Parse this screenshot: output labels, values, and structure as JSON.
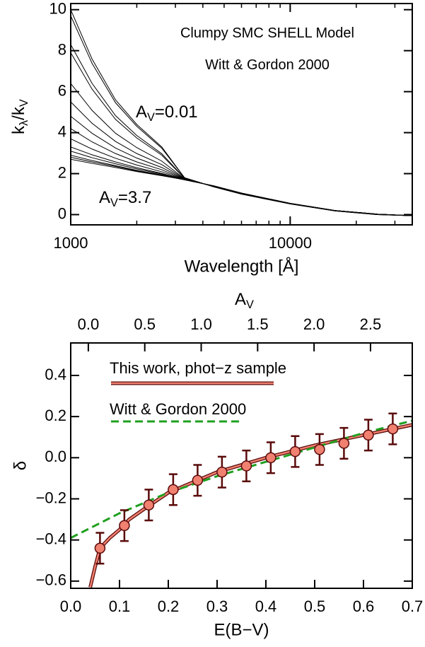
{
  "chart_data": [
    {
      "type": "line",
      "xlog": true,
      "color": "#000000",
      "xlabel": "Wavelength [Å]",
      "ylabel_parts": [
        "k",
        "λ",
        "/k",
        "V"
      ],
      "annotations": [
        {
          "parts": [
            "Clumpy SMC SHELL Model"
          ]
        },
        {
          "parts": [
            "Witt & Gordon 2000"
          ]
        },
        {
          "parts": [
            "A",
            "V",
            "=0.01"
          ]
        },
        {
          "parts": [
            "A",
            "V",
            "=3.7"
          ]
        }
      ],
      "xlim": [
        1000,
        36000
      ],
      "xticks": [
        1000,
        10000
      ],
      "xminorticks": [
        2000,
        3000,
        4000,
        5000,
        6000,
        7000,
        8000,
        9000,
        20000,
        30000
      ],
      "ylim": [
        -0.5,
        10.3
      ],
      "yticks": [
        0,
        2,
        4,
        6,
        8,
        10
      ],
      "x": [
        1000,
        1250,
        1600,
        2000,
        2600,
        3300,
        4500,
        6000,
        10000,
        16000,
        25000,
        36000
      ],
      "series": [
        {
          "values": [
            10.0,
            7.6,
            5.6,
            4.4,
            3.3,
            1.8,
            1.35,
            1.0,
            0.52,
            0.18,
            0.0,
            -0.05
          ]
        },
        {
          "values": [
            9.7,
            7.39,
            5.46,
            4.31,
            3.24,
            1.8,
            1.35,
            1.0,
            0.52,
            0.18,
            0.0,
            -0.05
          ]
        },
        {
          "values": [
            8.3,
            6.41,
            4.83,
            3.86,
            2.97,
            1.78,
            1.36,
            1.01,
            0.53,
            0.18,
            0.0,
            -0.05
          ]
        },
        {
          "values": [
            7.9,
            6.13,
            4.65,
            3.74,
            2.9,
            1.77,
            1.36,
            1.01,
            0.53,
            0.19,
            0.01,
            -0.05
          ]
        },
        {
          "values": [
            6.4,
            5.09,
            3.97,
            3.27,
            2.61,
            1.75,
            1.37,
            1.02,
            0.54,
            0.19,
            0.01,
            -0.05
          ]
        },
        {
          "values": [
            5.5,
            4.46,
            3.57,
            2.98,
            2.44,
            1.74,
            1.38,
            1.03,
            0.54,
            0.19,
            0.01,
            -0.05
          ]
        },
        {
          "values": [
            4.8,
            3.97,
            3.25,
            2.76,
            2.3,
            1.73,
            1.39,
            1.04,
            0.55,
            0.2,
            0.02,
            -0.05
          ]
        },
        {
          "values": [
            4.2,
            3.55,
            2.98,
            2.57,
            2.19,
            1.72,
            1.39,
            1.04,
            0.55,
            0.2,
            0.02,
            -0.05
          ]
        },
        {
          "values": [
            3.7,
            3.2,
            2.75,
            2.42,
            2.09,
            1.71,
            1.39,
            1.04,
            0.55,
            0.2,
            0.02,
            -0.05
          ]
        },
        {
          "values": [
            3.3,
            2.92,
            2.57,
            2.29,
            2.01,
            1.71,
            1.4,
            1.05,
            0.55,
            0.2,
            0.02,
            -0.05
          ]
        },
        {
          "values": [
            3.1,
            2.78,
            2.48,
            2.23,
            1.98,
            1.71,
            1.4,
            1.05,
            0.55,
            0.2,
            0.02,
            -0.05
          ]
        },
        {
          "values": [
            2.9,
            2.64,
            2.39,
            2.16,
            1.94,
            1.7,
            1.4,
            1.05,
            0.55,
            0.2,
            0.02,
            -0.05
          ]
        },
        {
          "values": [
            2.8,
            2.57,
            2.35,
            2.13,
            1.92,
            1.7,
            1.4,
            1.05,
            0.55,
            0.2,
            0.02,
            -0.05
          ]
        },
        {
          "values": [
            2.7,
            2.5,
            2.3,
            2.1,
            1.9,
            1.7,
            1.4,
            1.05,
            0.55,
            0.2,
            0.02,
            -0.05
          ]
        }
      ]
    },
    {
      "type": "line",
      "legend": "upper left",
      "xlabel": "E(B−V)",
      "x2label_parts": [
        "A",
        "V"
      ],
      "ylabel": "δ",
      "xlim": [
        0,
        0.7
      ],
      "xticks": [
        {
          "value": 0,
          "label": "0.0"
        },
        0.1,
        0.2,
        0.3,
        0.4,
        0.5,
        0.6,
        0.7
      ],
      "x2lim": [
        -0.156,
        2.87
      ],
      "x2ticks": [
        {
          "value": 0,
          "label": "0.0"
        },
        0.5,
        {
          "value": 1,
          "label": "1.0"
        },
        1.5,
        {
          "value": 2,
          "label": "2.0"
        },
        2.5
      ],
      "ylim": [
        -0.635,
        0.558
      ],
      "yticks": [
        {
          "value": -0.6,
          "label": "−0.6"
        },
        {
          "value": -0.4,
          "label": "−0.4"
        },
        {
          "value": -0.2,
          "label": "−0.2"
        },
        {
          "value": 0,
          "label": "0.0"
        },
        0.2,
        0.4
      ],
      "series": [
        {
          "name": "This work, phot−z sample",
          "color": "#f08070",
          "edge": "#5a0a0a",
          "x": [
            0.04,
            0.05,
            0.06,
            0.08,
            0.1,
            0.12,
            0.15,
            0.2,
            0.3,
            0.4,
            0.5,
            0.6,
            0.7
          ],
          "values": [
            -0.63,
            -0.53,
            -0.44,
            -0.39,
            -0.35,
            -0.3,
            -0.25,
            -0.17,
            -0.07,
            0.0,
            0.06,
            0.11,
            0.16
          ]
        },
        {
          "name": "Witt & Gordon 2000",
          "color": "#1fa01f",
          "dash": true,
          "x": [
            0.0,
            0.05,
            0.1,
            0.15,
            0.2,
            0.3,
            0.4,
            0.5,
            0.6,
            0.7
          ],
          "values": [
            -0.39,
            -0.33,
            -0.27,
            -0.22,
            -0.17,
            -0.09,
            -0.02,
            0.05,
            0.12,
            0.18
          ]
        },
        {
          "marker": true,
          "color": "#f08070",
          "edge": "#5a0a0a",
          "x": [
            0.06,
            0.11,
            0.16,
            0.21,
            0.26,
            0.31,
            0.36,
            0.41,
            0.46,
            0.51,
            0.56,
            0.61,
            0.66
          ],
          "values": [
            -0.44,
            -0.33,
            -0.23,
            -0.155,
            -0.11,
            -0.07,
            -0.04,
            0.0,
            0.03,
            0.04,
            0.07,
            0.11,
            0.14
          ],
          "errors": [
            0.075,
            0.075,
            0.075,
            0.075,
            0.075,
            0.075,
            0.075,
            0.075,
            0.075,
            0.075,
            0.075,
            0.075,
            0.075
          ]
        }
      ]
    }
  ]
}
